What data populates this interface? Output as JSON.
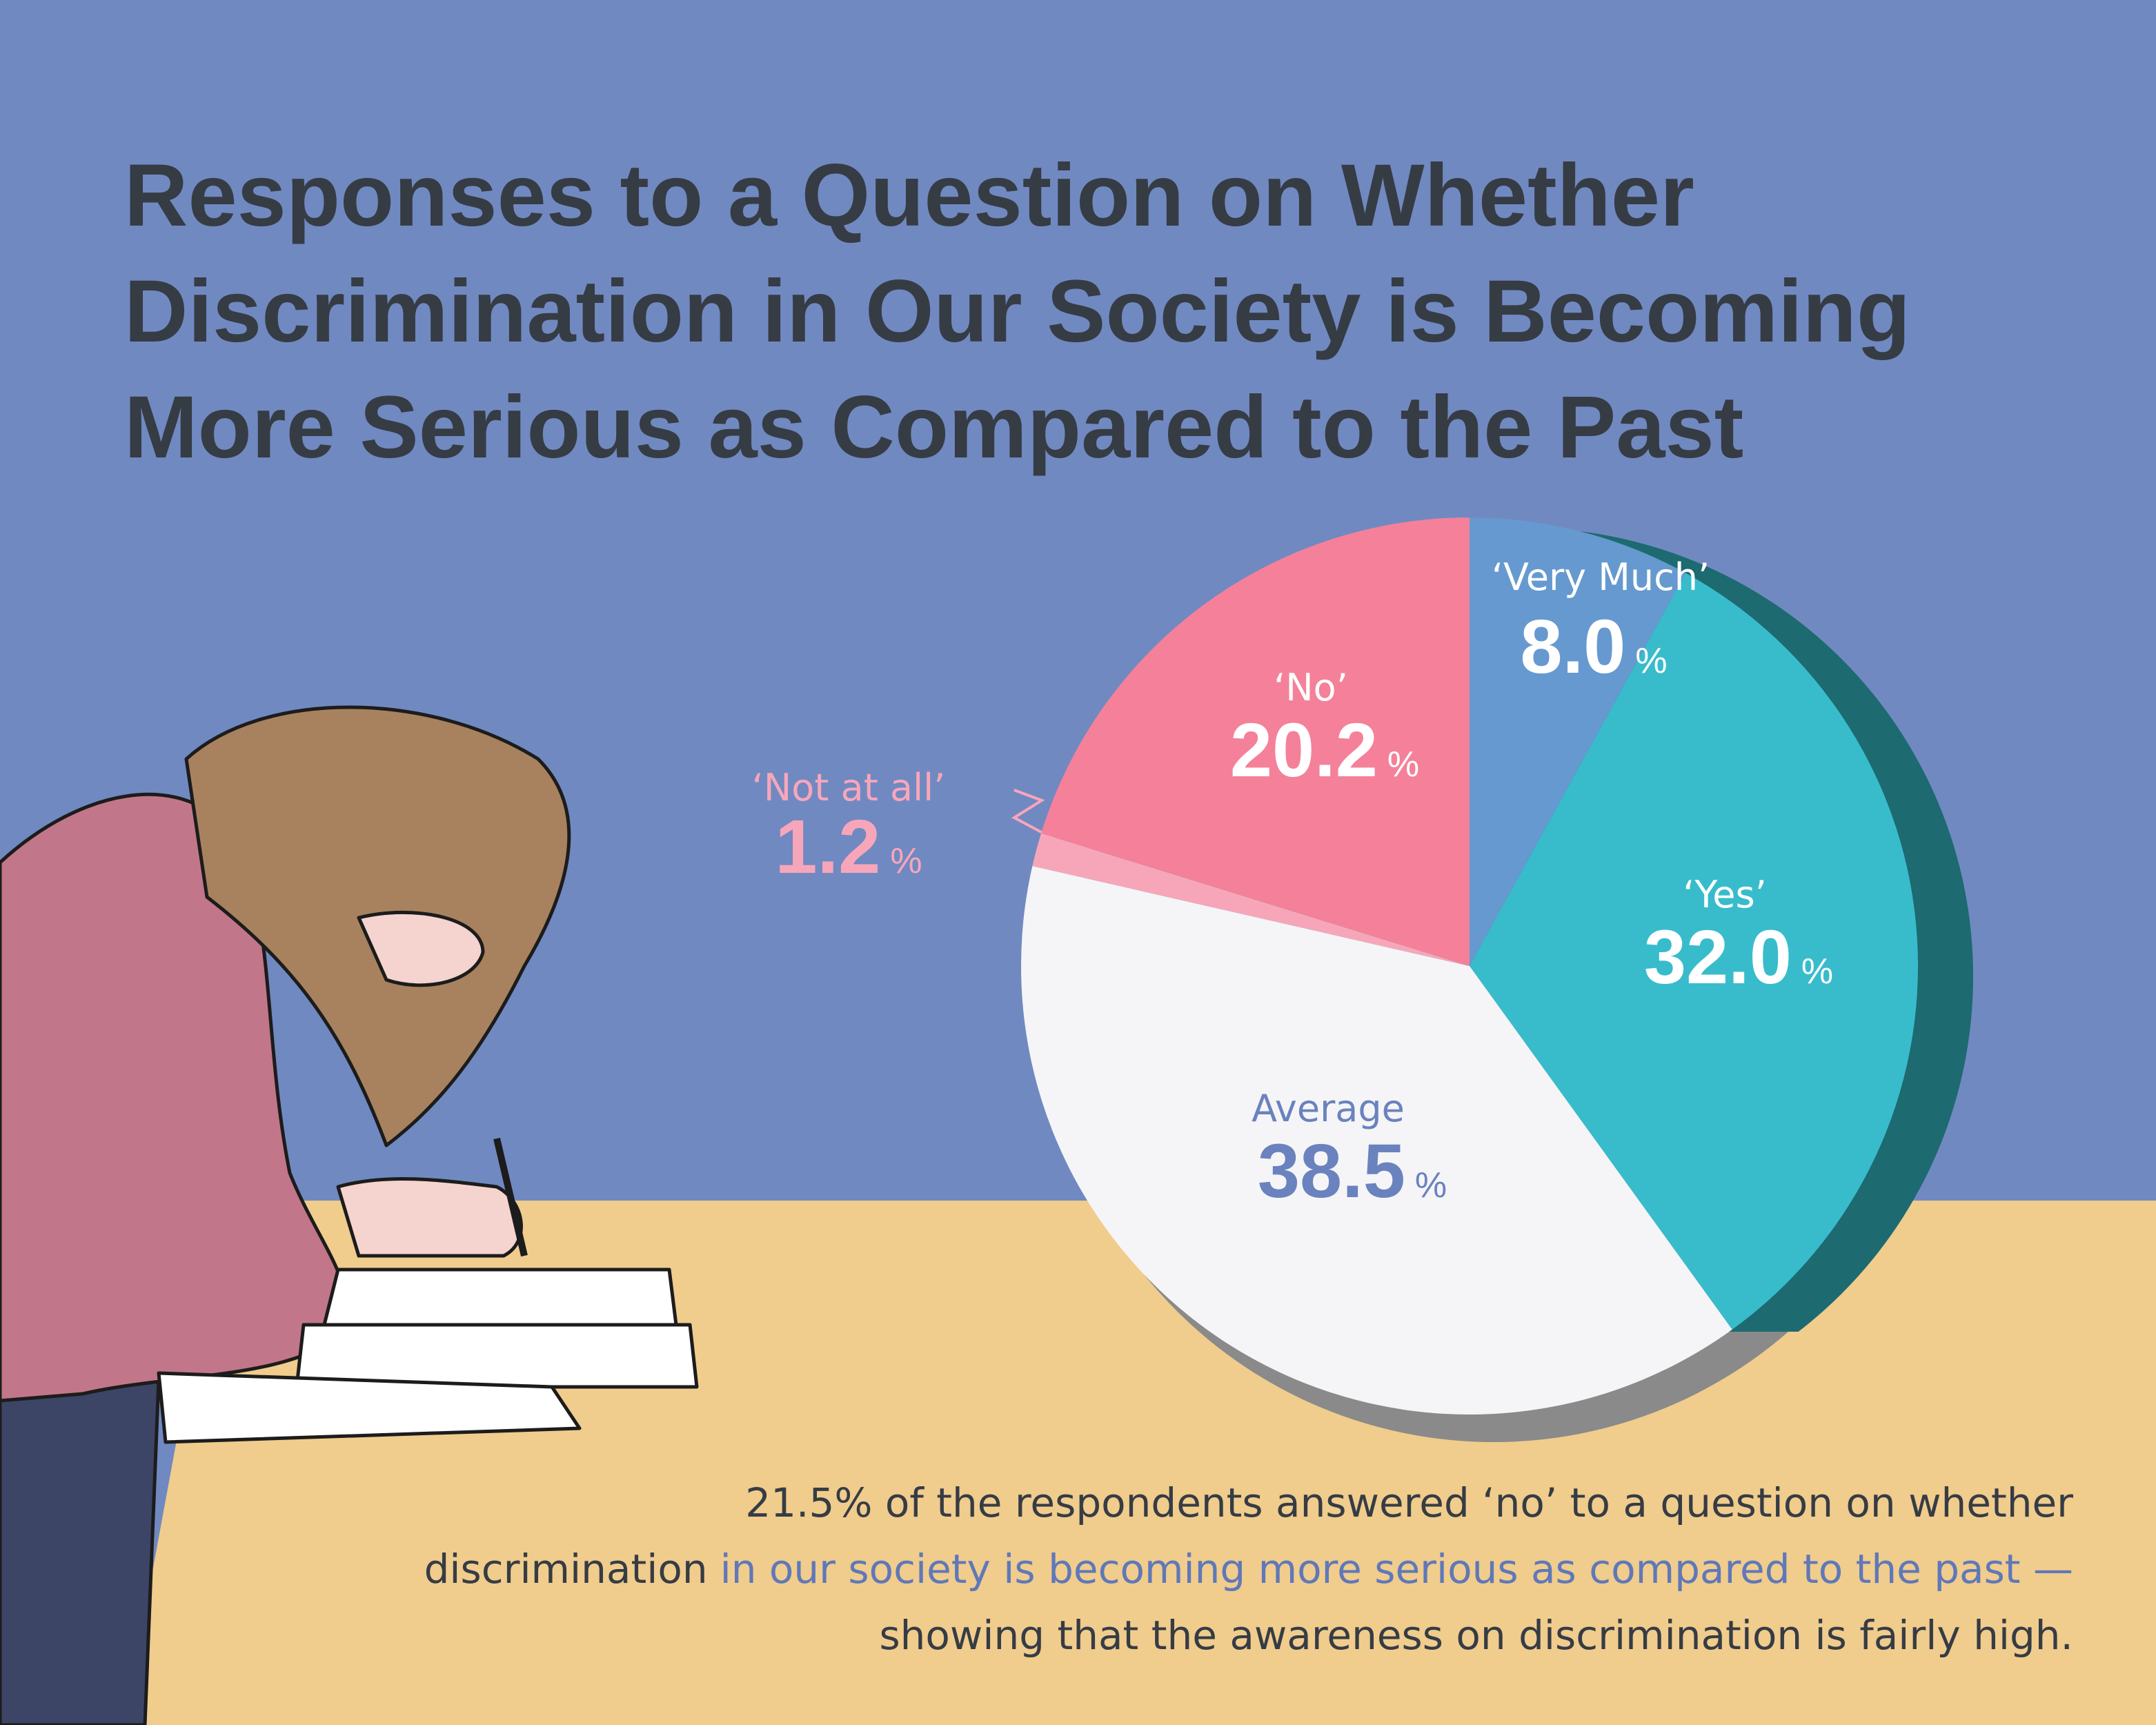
{
  "title_lines": [
    "Responses to a Question on Whether",
    "Discrimination in Our Society is Becoming",
    "More Serious as Compared to the Past"
  ],
  "chart_data": {
    "type": "pie",
    "categories": [
      "‘Very Much’",
      "‘Yes’",
      "Average",
      "‘Not at all’",
      "‘No’"
    ],
    "values": [
      8.0,
      32.0,
      38.5,
      1.2,
      20.2
    ],
    "value_labels": [
      "8.0%",
      "32.0%",
      "38.5%",
      "1.2%",
      "20.2%"
    ],
    "colors": [
      "#6699cf",
      "#38bccc",
      "#f5f5f7",
      "#f7a6ba",
      "#f48199"
    ]
  },
  "annotation": [
    [
      "21.5% of the respondents answered ‘no’ to a question on whether"
    ],
    [
      "discrimination",
      "in our society is becoming more serious as compared to the past —"
    ],
    [
      "showing that the awareness on discrimination is fairly high."
    ]
  ]
}
